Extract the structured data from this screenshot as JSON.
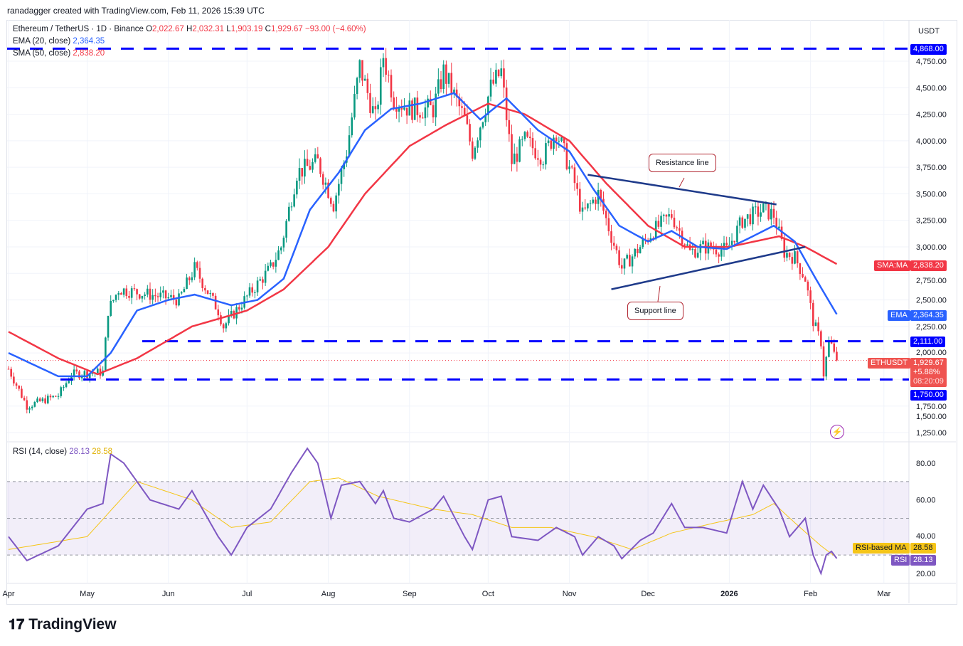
{
  "credit": "ranadagger created with TradingView.com, Feb 11, 2026 15:39 UTC",
  "legend": {
    "symbol": "Ethereum / TetherUS · 1D · Binance",
    "o_label": "O",
    "o": "2,022.67",
    "h_label": "H",
    "h": "2,032.31",
    "l_label": "L",
    "l": "1,903.19",
    "c_label": "C",
    "c": "1,929.67",
    "change": "−93.00 (−4.60%)",
    "ema_label": "EMA (20, close)",
    "ema": "2,364.35",
    "sma_label": "SMA (50, close)",
    "sma": "2,838.20",
    "rsi_label": "RSI (14, close)",
    "rsi": "28.13",
    "rsi_ma": "28.58"
  },
  "currency": "USDT",
  "labels": {
    "level_top": "4,868.00",
    "sma_tag": "SMA:MA",
    "sma_val": "2,838.20",
    "ema_tag": "EMA",
    "ema_val": "2,364.35",
    "level_mid": "2,111.00",
    "sym_tag": "ETHUSDT",
    "price": "1,929.67",
    "price_chg": "+5.88%",
    "countdown": "08:20:09",
    "level_low": "1,750.00",
    "rsi_ma_tag": "RSI-based MA",
    "rsi_ma_val": "28.58",
    "rsi_tag": "RSI",
    "rsi_val": "28.13"
  },
  "annotations": {
    "resistance": "Resistance line",
    "support": "Support line"
  },
  "logo": "TradingView",
  "colors": {
    "up": "#089981",
    "down": "#f23645",
    "ema": "#2962ff",
    "sma": "#f23645",
    "level": "#0000ff",
    "rsi": "#7e57c2",
    "rsi_ma": "#f5c518",
    "trend": "#1e3a8a"
  },
  "chart_data": [
    {
      "type": "candlestick",
      "title": "Ethereum / TetherUS · 1D · Binance",
      "y_axis_ticks": [
        "4,750.00",
        "4,500.00",
        "4,250.00",
        "4,000.00",
        "3,750.00",
        "3,500.00",
        "3,250.00",
        "3,000.00",
        "2,750.00",
        "2,500.00",
        "2,250.00",
        "2,000.00",
        "1,750.00",
        "1,500.00",
        "1,250.00"
      ],
      "ylim": [
        1150,
        4950
      ],
      "x_ticks": [
        "Apr",
        "May",
        "Jun",
        "Jul",
        "Aug",
        "Sep",
        "Oct",
        "Nov",
        "Dec",
        "2026",
        "Feb",
        "Mar"
      ],
      "close": [
        [
          "2025-04-01",
          1850
        ],
        [
          "2025-04-08",
          1500
        ],
        [
          "2025-04-20",
          1600
        ],
        [
          "2025-04-25",
          1800
        ],
        [
          "2025-05-07",
          1820
        ],
        [
          "2025-05-09",
          2400
        ],
        [
          "2025-05-13",
          2600
        ],
        [
          "2025-05-25",
          2550
        ],
        [
          "2025-06-05",
          2500
        ],
        [
          "2025-06-11",
          2800
        ],
        [
          "2025-06-20",
          2400
        ],
        [
          "2025-06-22",
          2250
        ],
        [
          "2025-06-30",
          2500
        ],
        [
          "2025-07-10",
          2800
        ],
        [
          "2025-07-14",
          3000
        ],
        [
          "2025-07-20",
          3700
        ],
        [
          "2025-07-28",
          3800
        ],
        [
          "2025-08-03",
          3400
        ],
        [
          "2025-08-08",
          3900
        ],
        [
          "2025-08-13",
          4700
        ],
        [
          "2025-08-19",
          4200
        ],
        [
          "2025-08-22",
          4800
        ],
        [
          "2025-08-26",
          4400
        ],
        [
          "2025-09-01",
          4300
        ],
        [
          "2025-09-10",
          4300
        ],
        [
          "2025-09-14",
          4650
        ],
        [
          "2025-09-22",
          4200
        ],
        [
          "2025-09-25",
          3900
        ],
        [
          "2025-10-02",
          4500
        ],
        [
          "2025-10-06",
          4650
        ],
        [
          "2025-10-10",
          3800
        ],
        [
          "2025-10-15",
          4000
        ],
        [
          "2025-10-22",
          3850
        ],
        [
          "2025-10-27",
          4100
        ],
        [
          "2025-11-03",
          3600
        ],
        [
          "2025-11-06",
          3300
        ],
        [
          "2025-11-12",
          3500
        ],
        [
          "2025-11-17",
          3100
        ],
        [
          "2025-11-21",
          2800
        ],
        [
          "2025-11-28",
          3000
        ],
        [
          "2025-12-03",
          3150
        ],
        [
          "2025-12-10",
          3300
        ],
        [
          "2025-12-17",
          2950
        ],
        [
          "2025-12-22",
          3000
        ],
        [
          "2025-12-31",
          2970
        ],
        [
          "2026-01-06",
          3250
        ],
        [
          "2026-01-14",
          3350
        ],
        [
          "2026-01-18",
          3300
        ],
        [
          "2026-01-22",
          2950
        ],
        [
          "2026-01-26",
          2900
        ],
        [
          "2026-01-30",
          2700
        ],
        [
          "2026-02-02",
          2300
        ],
        [
          "2026-02-05",
          2100
        ],
        [
          "2026-02-06",
          1800
        ],
        [
          "2026-02-08",
          2100
        ],
        [
          "2026-02-10",
          2023
        ],
        [
          "2026-02-11",
          1930
        ]
      ],
      "ema20": [
        [
          "2025-04-01",
          2000
        ],
        [
          "2025-04-20",
          1780
        ],
        [
          "2025-05-01",
          1780
        ],
        [
          "2025-05-10",
          2000
        ],
        [
          "2025-05-20",
          2400
        ],
        [
          "2025-06-01",
          2500
        ],
        [
          "2025-06-11",
          2550
        ],
        [
          "2025-06-25",
          2450
        ],
        [
          "2025-07-05",
          2500
        ],
        [
          "2025-07-15",
          2700
        ],
        [
          "2025-07-25",
          3350
        ],
        [
          "2025-08-05",
          3700
        ],
        [
          "2025-08-15",
          4100
        ],
        [
          "2025-08-25",
          4300
        ],
        [
          "2025-09-05",
          4350
        ],
        [
          "2025-09-18",
          4450
        ],
        [
          "2025-09-28",
          4200
        ],
        [
          "2025-10-08",
          4400
        ],
        [
          "2025-10-20",
          4100
        ],
        [
          "2025-11-01",
          3900
        ],
        [
          "2025-11-10",
          3550
        ],
        [
          "2025-11-20",
          3200
        ],
        [
          "2025-12-01",
          3050
        ],
        [
          "2025-12-10",
          3150
        ],
        [
          "2025-12-20",
          3000
        ],
        [
          "2025-12-31",
          2980
        ],
        [
          "2026-01-10",
          3100
        ],
        [
          "2026-01-18",
          3200
        ],
        [
          "2026-01-26",
          3050
        ],
        [
          "2026-02-03",
          2700
        ],
        [
          "2026-02-11",
          2364.35
        ]
      ],
      "sma50": [
        [
          "2025-04-01",
          2200
        ],
        [
          "2025-04-20",
          1950
        ],
        [
          "2025-05-05",
          1800
        ],
        [
          "2025-05-20",
          1950
        ],
        [
          "2025-06-10",
          2250
        ],
        [
          "2025-07-01",
          2400
        ],
        [
          "2025-07-15",
          2600
        ],
        [
          "2025-08-01",
          3000
        ],
        [
          "2025-08-15",
          3500
        ],
        [
          "2025-09-01",
          3950
        ],
        [
          "2025-09-15",
          4150
        ],
        [
          "2025-10-01",
          4350
        ],
        [
          "2025-10-15",
          4250
        ],
        [
          "2025-11-01",
          4000
        ],
        [
          "2025-11-15",
          3600
        ],
        [
          "2025-12-01",
          3200
        ],
        [
          "2025-12-15",
          3000
        ],
        [
          "2026-01-01",
          3000
        ],
        [
          "2026-01-20",
          3100
        ],
        [
          "2026-01-30",
          3000
        ],
        [
          "2026-02-11",
          2838.2
        ]
      ],
      "levels": [
        4868,
        2111,
        1750
      ],
      "trendlines": [
        {
          "name": "Resistance line",
          "from": [
            "2025-11-08",
            3680
          ],
          "to": [
            "2026-01-19",
            3400
          ]
        },
        {
          "name": "Support line",
          "from": [
            "2025-11-17",
            2600
          ],
          "to": [
            "2026-01-30",
            3000
          ]
        }
      ]
    },
    {
      "type": "line",
      "title": "RSI (14, close)",
      "y_axis_ticks": [
        "80.00",
        "60.00",
        "40.00",
        "20.00"
      ],
      "ylim": [
        10,
        90
      ],
      "band": [
        30,
        70
      ],
      "rsi": [
        [
          "2025-04-01",
          40
        ],
        [
          "2025-04-08",
          27
        ],
        [
          "2025-04-20",
          35
        ],
        [
          "2025-05-01",
          55
        ],
        [
          "2025-05-07",
          58
        ],
        [
          "2025-05-10",
          85
        ],
        [
          "2025-05-15",
          80
        ],
        [
          "2025-05-25",
          60
        ],
        [
          "2025-06-05",
          55
        ],
        [
          "2025-06-10",
          65
        ],
        [
          "2025-06-20",
          40
        ],
        [
          "2025-06-25",
          30
        ],
        [
          "2025-07-01",
          45
        ],
        [
          "2025-07-10",
          55
        ],
        [
          "2025-07-18",
          75
        ],
        [
          "2025-07-24",
          88
        ],
        [
          "2025-07-28",
          80
        ],
        [
          "2025-08-02",
          50
        ],
        [
          "2025-08-06",
          68
        ],
        [
          "2025-08-13",
          70
        ],
        [
          "2025-08-19",
          58
        ],
        [
          "2025-08-22",
          65
        ],
        [
          "2025-08-26",
          50
        ],
        [
          "2025-09-01",
          48
        ],
        [
          "2025-09-10",
          55
        ],
        [
          "2025-09-14",
          62
        ],
        [
          "2025-09-22",
          40
        ],
        [
          "2025-09-25",
          33
        ],
        [
          "2025-10-01",
          60
        ],
        [
          "2025-10-06",
          62
        ],
        [
          "2025-10-10",
          40
        ],
        [
          "2025-10-20",
          38
        ],
        [
          "2025-10-27",
          45
        ],
        [
          "2025-11-03",
          40
        ],
        [
          "2025-11-06",
          30
        ],
        [
          "2025-11-12",
          40
        ],
        [
          "2025-11-18",
          35
        ],
        [
          "2025-11-21",
          28
        ],
        [
          "2025-11-28",
          38
        ],
        [
          "2025-12-03",
          42
        ],
        [
          "2025-12-10",
          58
        ],
        [
          "2025-12-15",
          45
        ],
        [
          "2025-12-22",
          45
        ],
        [
          "2025-12-31",
          42
        ],
        [
          "2026-01-06",
          70
        ],
        [
          "2026-01-10",
          55
        ],
        [
          "2026-01-14",
          68
        ],
        [
          "2026-01-20",
          55
        ],
        [
          "2026-01-24",
          40
        ],
        [
          "2026-01-30",
          50
        ],
        [
          "2026-02-02",
          30
        ],
        [
          "2026-02-05",
          20
        ],
        [
          "2026-02-07",
          30
        ],
        [
          "2026-02-09",
          32
        ],
        [
          "2026-02-11",
          28.13
        ]
      ],
      "rsi_ma": [
        [
          "2025-04-01",
          33
        ],
        [
          "2025-05-01",
          40
        ],
        [
          "2025-05-20",
          70
        ],
        [
          "2025-06-10",
          60
        ],
        [
          "2025-06-25",
          45
        ],
        [
          "2025-07-10",
          48
        ],
        [
          "2025-07-25",
          70
        ],
        [
          "2025-08-05",
          72
        ],
        [
          "2025-08-20",
          62
        ],
        [
          "2025-09-10",
          55
        ],
        [
          "2025-09-25",
          52
        ],
        [
          "2025-10-10",
          45
        ],
        [
          "2025-10-25",
          45
        ],
        [
          "2025-11-10",
          40
        ],
        [
          "2025-11-25",
          33
        ],
        [
          "2025-12-10",
          42
        ],
        [
          "2025-12-25",
          47
        ],
        [
          "2026-01-10",
          52
        ],
        [
          "2026-01-18",
          58
        ],
        [
          "2026-01-28",
          45
        ],
        [
          "2026-02-05",
          35
        ],
        [
          "2026-02-11",
          28.58
        ]
      ]
    }
  ]
}
